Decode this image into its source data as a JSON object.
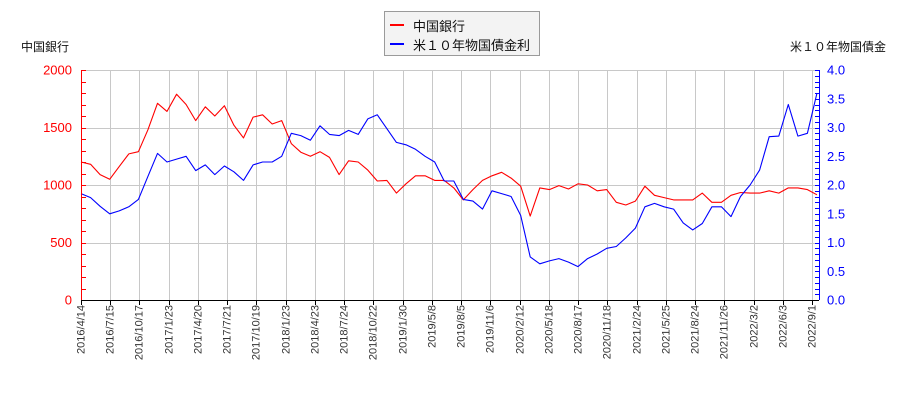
{
  "legend": {
    "items": [
      {
        "label": "中国銀行",
        "color": "#ff0000"
      },
      {
        "label": "米１０年物国債金利",
        "color": "#0000ff"
      }
    ]
  },
  "axes": {
    "left_title": "中国銀行",
    "right_title": "米１０年物国債金"
  },
  "chart_data": {
    "type": "line",
    "title": "",
    "xlabel": "",
    "ylabel": "中国銀行",
    "y2label": "米１０年物国債金",
    "legend_position": "top-center",
    "grid": true,
    "ylim": [
      0,
      2000
    ],
    "y_ticks": [
      "0",
      "500",
      "1000",
      "1500",
      "2000"
    ],
    "y_tick_values": [
      0,
      500,
      1000,
      1500,
      2000
    ],
    "y2lim": [
      0,
      4.0
    ],
    "y2_ticks": [
      "0.0",
      "0.5",
      "1.0",
      "1.5",
      "2.0",
      "2.5",
      "3.0",
      "3.5",
      "4.0"
    ],
    "y2_tick_values": [
      0,
      0.5,
      1.0,
      1.5,
      2.0,
      2.5,
      3.0,
      3.5,
      4.0
    ],
    "x_tick_labels": [
      "2016/4/14",
      "2016/7/15",
      "2016/10/17",
      "2017/1/23",
      "2017/4/20",
      "2017/7/21",
      "2017/10/19",
      "2018/1/23",
      "2018/4/23",
      "2018/7/24",
      "2018/10/22",
      "2019/1/30",
      "2019/5/8",
      "2019/8/5",
      "2019/11/6",
      "2020/2/12",
      "2020/5/18",
      "2020/8/17",
      "2020/11/18",
      "2021/2/24",
      "2021/5/25",
      "2021/8/24",
      "2021/11/26",
      "2022/3/2",
      "2022/6/3",
      "2022/9/1"
    ],
    "x": [
      "2016/4",
      "2016/5",
      "2016/6",
      "2016/7",
      "2016/8",
      "2016/9",
      "2016/10",
      "2016/11",
      "2016/12",
      "2017/1",
      "2017/2",
      "2017/3",
      "2017/4",
      "2017/5",
      "2017/6",
      "2017/7",
      "2017/8",
      "2017/9",
      "2017/10",
      "2017/11",
      "2017/12",
      "2018/1",
      "2018/2",
      "2018/3",
      "2018/4",
      "2018/5",
      "2018/6",
      "2018/7",
      "2018/8",
      "2018/9",
      "2018/10",
      "2018/11",
      "2018/12",
      "2019/1",
      "2019/2",
      "2019/3",
      "2019/4",
      "2019/5",
      "2019/6",
      "2019/7",
      "2019/8",
      "2019/9",
      "2019/10",
      "2019/11",
      "2019/12",
      "2020/1",
      "2020/2",
      "2020/3",
      "2020/4",
      "2020/5",
      "2020/6",
      "2020/7",
      "2020/8",
      "2020/9",
      "2020/10",
      "2020/11",
      "2020/12",
      "2021/1",
      "2021/2",
      "2021/3",
      "2021/4",
      "2021/5",
      "2021/6",
      "2021/7",
      "2021/8",
      "2021/9",
      "2021/10",
      "2021/11",
      "2021/12",
      "2022/1",
      "2022/2",
      "2022/3",
      "2022/4",
      "2022/5",
      "2022/6",
      "2022/7",
      "2022/8",
      "2022/9"
    ],
    "series": [
      {
        "name": "中国銀行",
        "axis": "left",
        "color": "#ff0000",
        "values": [
          1200,
          1180,
          1090,
          1050,
          1160,
          1270,
          1290,
          1480,
          1710,
          1640,
          1790,
          1700,
          1560,
          1680,
          1600,
          1690,
          1520,
          1410,
          1590,
          1610,
          1530,
          1560,
          1360,
          1285,
          1250,
          1290,
          1240,
          1090,
          1210,
          1200,
          1130,
          1035,
          1040,
          930,
          1010,
          1080,
          1080,
          1040,
          1040,
          975,
          870,
          960,
          1040,
          1080,
          1110,
          1060,
          990,
          730,
          975,
          960,
          995,
          965,
          1010,
          1000,
          950,
          960,
          850,
          826,
          860,
          990,
          910,
          890,
          870,
          870,
          870,
          930,
          850,
          850,
          910,
          935,
          930,
          930,
          950,
          930,
          975,
          975,
          960,
          915
        ]
      },
      {
        "name": "米１０年物国債金利",
        "axis": "right",
        "color": "#0000ff",
        "values": [
          1.85,
          1.78,
          1.63,
          1.5,
          1.55,
          1.62,
          1.75,
          2.15,
          2.55,
          2.4,
          2.45,
          2.5,
          2.25,
          2.35,
          2.18,
          2.33,
          2.23,
          2.08,
          2.35,
          2.4,
          2.4,
          2.5,
          2.9,
          2.86,
          2.78,
          3.03,
          2.88,
          2.86,
          2.95,
          2.88,
          3.15,
          3.22,
          2.98,
          2.74,
          2.7,
          2.62,
          2.5,
          2.4,
          2.07,
          2.07,
          1.75,
          1.72,
          1.58,
          1.9,
          1.85,
          1.8,
          1.47,
          0.75,
          0.63,
          0.68,
          0.72,
          0.66,
          0.58,
          0.72,
          0.8,
          0.9,
          0.93,
          1.08,
          1.25,
          1.62,
          1.68,
          1.62,
          1.58,
          1.34,
          1.22,
          1.33,
          1.62,
          1.62,
          1.45,
          1.8,
          2.0,
          2.26,
          2.84,
          2.85,
          3.4,
          2.85,
          2.9,
          3.6
        ]
      }
    ]
  }
}
